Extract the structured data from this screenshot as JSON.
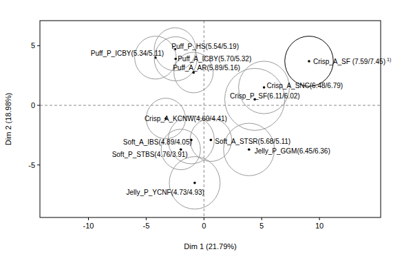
{
  "chart_data": {
    "type": "scatter",
    "x_label": "Dim 1 (21.79%)",
    "y_label": "Dim 2 (18.98%)",
    "xlim": [
      -14.2,
      15.3
    ],
    "ylim": [
      -9.4,
      7.1
    ],
    "xticks": [
      -10,
      -5,
      0,
      5,
      10
    ],
    "yticks": [
      -5,
      0,
      5
    ],
    "vlines": [
      0
    ],
    "hlines": [
      0
    ],
    "names": [
      "Crisp_A_SF",
      "Crisp_A_SNC",
      "Crisp_P_SF",
      "Puff_P_HS",
      "Puff_P_ICBY",
      "Puff_A_ICBY",
      "Puff_A_AR",
      "Crisp_A_KCNW",
      "Soft_A_IBS",
      "Soft_P_STBS",
      "Soft_A_STSR",
      "Jelly_P_GGM",
      "Jelly_P_YCNF"
    ],
    "point_labels": [
      "Crisp_A_SF (7.59/7.45)",
      "Crisp_A_SNC(6.48/6.79)",
      "Crisp_P_SF(6.11/6.02)",
      "Puff_P_HS(5.54/5.19)",
      "Puff_P_ICBY(5.34/5.11)",
      "Puff_A_ICBY(5.70/5.32)",
      "Puff_A_AR(5.89/5.16)",
      "Crisp_A_KCNW(4.60/4.41)",
      "Soft_A_IBS(4.89/4.05)",
      "Soft_P_STBS(4.76/3.91)",
      "Soft_A_STSR(5.68/5.11)",
      "Jelly_P_GGM(6.45/6.36)",
      "Jelly_P_YCNF(4.73/4.93)"
    ],
    "point_notes": [
      "1)",
      null,
      null,
      null,
      null,
      null,
      null,
      null,
      null,
      null,
      null,
      null,
      null
    ],
    "x": [
      9.1,
      5.2,
      4.4,
      -2.5,
      -4.2,
      -2.45,
      -0.9,
      -3.3,
      -1.1,
      -2.0,
      0.6,
      3.9,
      -0.8
    ],
    "values": [
      3.7,
      1.5,
      0.5,
      4.7,
      4.0,
      3.9,
      2.75,
      -1.1,
      -2.9,
      -3.7,
      -2.9,
      -3.7,
      -6.5
    ],
    "radius": [
      2.1,
      2.2,
      2.6,
      1.8,
      1.8,
      1.85,
      1.7,
      1.7,
      2.0,
      1.7,
      1.8,
      2.2,
      2.2
    ],
    "colors": [
      "#000000",
      "#999999",
      "#999999",
      "#999999",
      "#999999",
      "#999999",
      "#999999",
      "#999999",
      "#999999",
      "#999999",
      "#999999",
      "#999999",
      "#999999"
    ],
    "marker": "circle",
    "grid": false
  }
}
